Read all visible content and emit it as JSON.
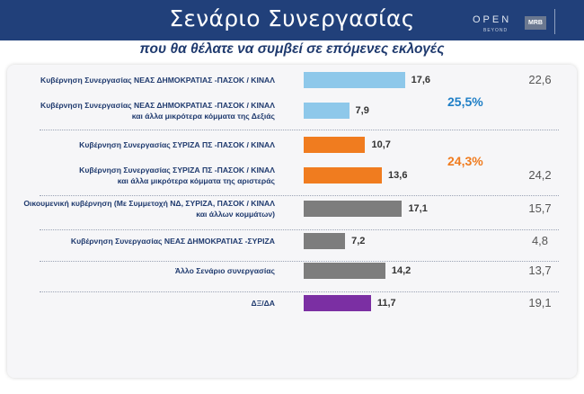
{
  "header": {
    "title": "Σενάριο Συνεργασίας",
    "logo_text": "OPEN",
    "logo_tagline": "BEYOND",
    "partner_badge": "MRB"
  },
  "subtitle": "που θα θέλατε να συμβεί σε επόμενες εκλογές",
  "colors": {
    "header_bg": "#21407a",
    "nd_blue": "#8ec8ea",
    "syriza_orange": "#f07c1f",
    "other_gray": "#7d7d7d",
    "dxda_purple": "#7b2fa3",
    "nd_group_text": "#1f7fc6",
    "syriza_group_text": "#f07c1f"
  },
  "chart_data": {
    "type": "bar",
    "orientation": "horizontal",
    "title": "Σενάριο Συνεργασίας",
    "subtitle": "που θα θέλατε να συμβεί σε επόμενες εκλογές",
    "categories": [
      [
        "Κυβέρνηση Συνεργασίας ΝΕΑΣ ΔΗΜΟΚΡΑΤΙΑΣ -ΠΑΣΟΚ / ΚΙΝΑΛ"
      ],
      [
        "Κυβέρνηση Συνεργασίας ΝΕΑΣ ΔΗΜΟΚΡΑΤΙΑΣ -ΠΑΣΟΚ / ΚΙΝΑΛ",
        "και άλλα μικρότερα κόμματα της Δεξιάς"
      ],
      [
        "Κυβέρνηση Συνεργασίας ΣΥΡΙΖΑ ΠΣ -ΠΑΣΟΚ / ΚΙΝΑΛ"
      ],
      [
        "Κυβέρνηση Συνεργασίας ΣΥΡΙΖΑ ΠΣ -ΠΑΣΟΚ / ΚΙΝΑΛ",
        "και άλλα μικρότερα κόμματα της αριστεράς"
      ],
      [
        "Οικουμενική κυβέρνηση (Με Συμμετοχή ΝΔ, ΣΥΡΙΖΑ, ΠΑΣΟΚ / ΚΙΝΑΛ",
        "και άλλων κομμάτων)"
      ],
      [
        "Κυβέρνηση Συνεργασίας ΝΕΑΣ ΔΗΜΟΚΡΑΤΙΑΣ -ΣΥΡΙΖΑ"
      ],
      [
        "Άλλο Σενάριο συνεργασίας"
      ],
      [
        "ΔΞ/ΔΑ"
      ]
    ],
    "values": [
      "17,6",
      "7,9",
      "10,7",
      "13,6",
      "17,1",
      "7,2",
      "14,2",
      "11,7"
    ],
    "previous_values": [
      "22,6",
      "",
      "",
      "24,2",
      "15,7",
      "4,8",
      "13,7",
      "19,1"
    ],
    "bar_colors": [
      "#8ec8ea",
      "#8ec8ea",
      "#f07c1f",
      "#f07c1f",
      "#7d7d7d",
      "#7d7d7d",
      "#7d7d7d",
      "#7b2fa3"
    ],
    "group_totals": [
      {
        "label": "25,5%",
        "color": "#1f7fc6"
      },
      {
        "label": "24,3%",
        "color": "#f07c1f"
      }
    ],
    "xlim": [
      0,
      25
    ],
    "grid": false
  }
}
